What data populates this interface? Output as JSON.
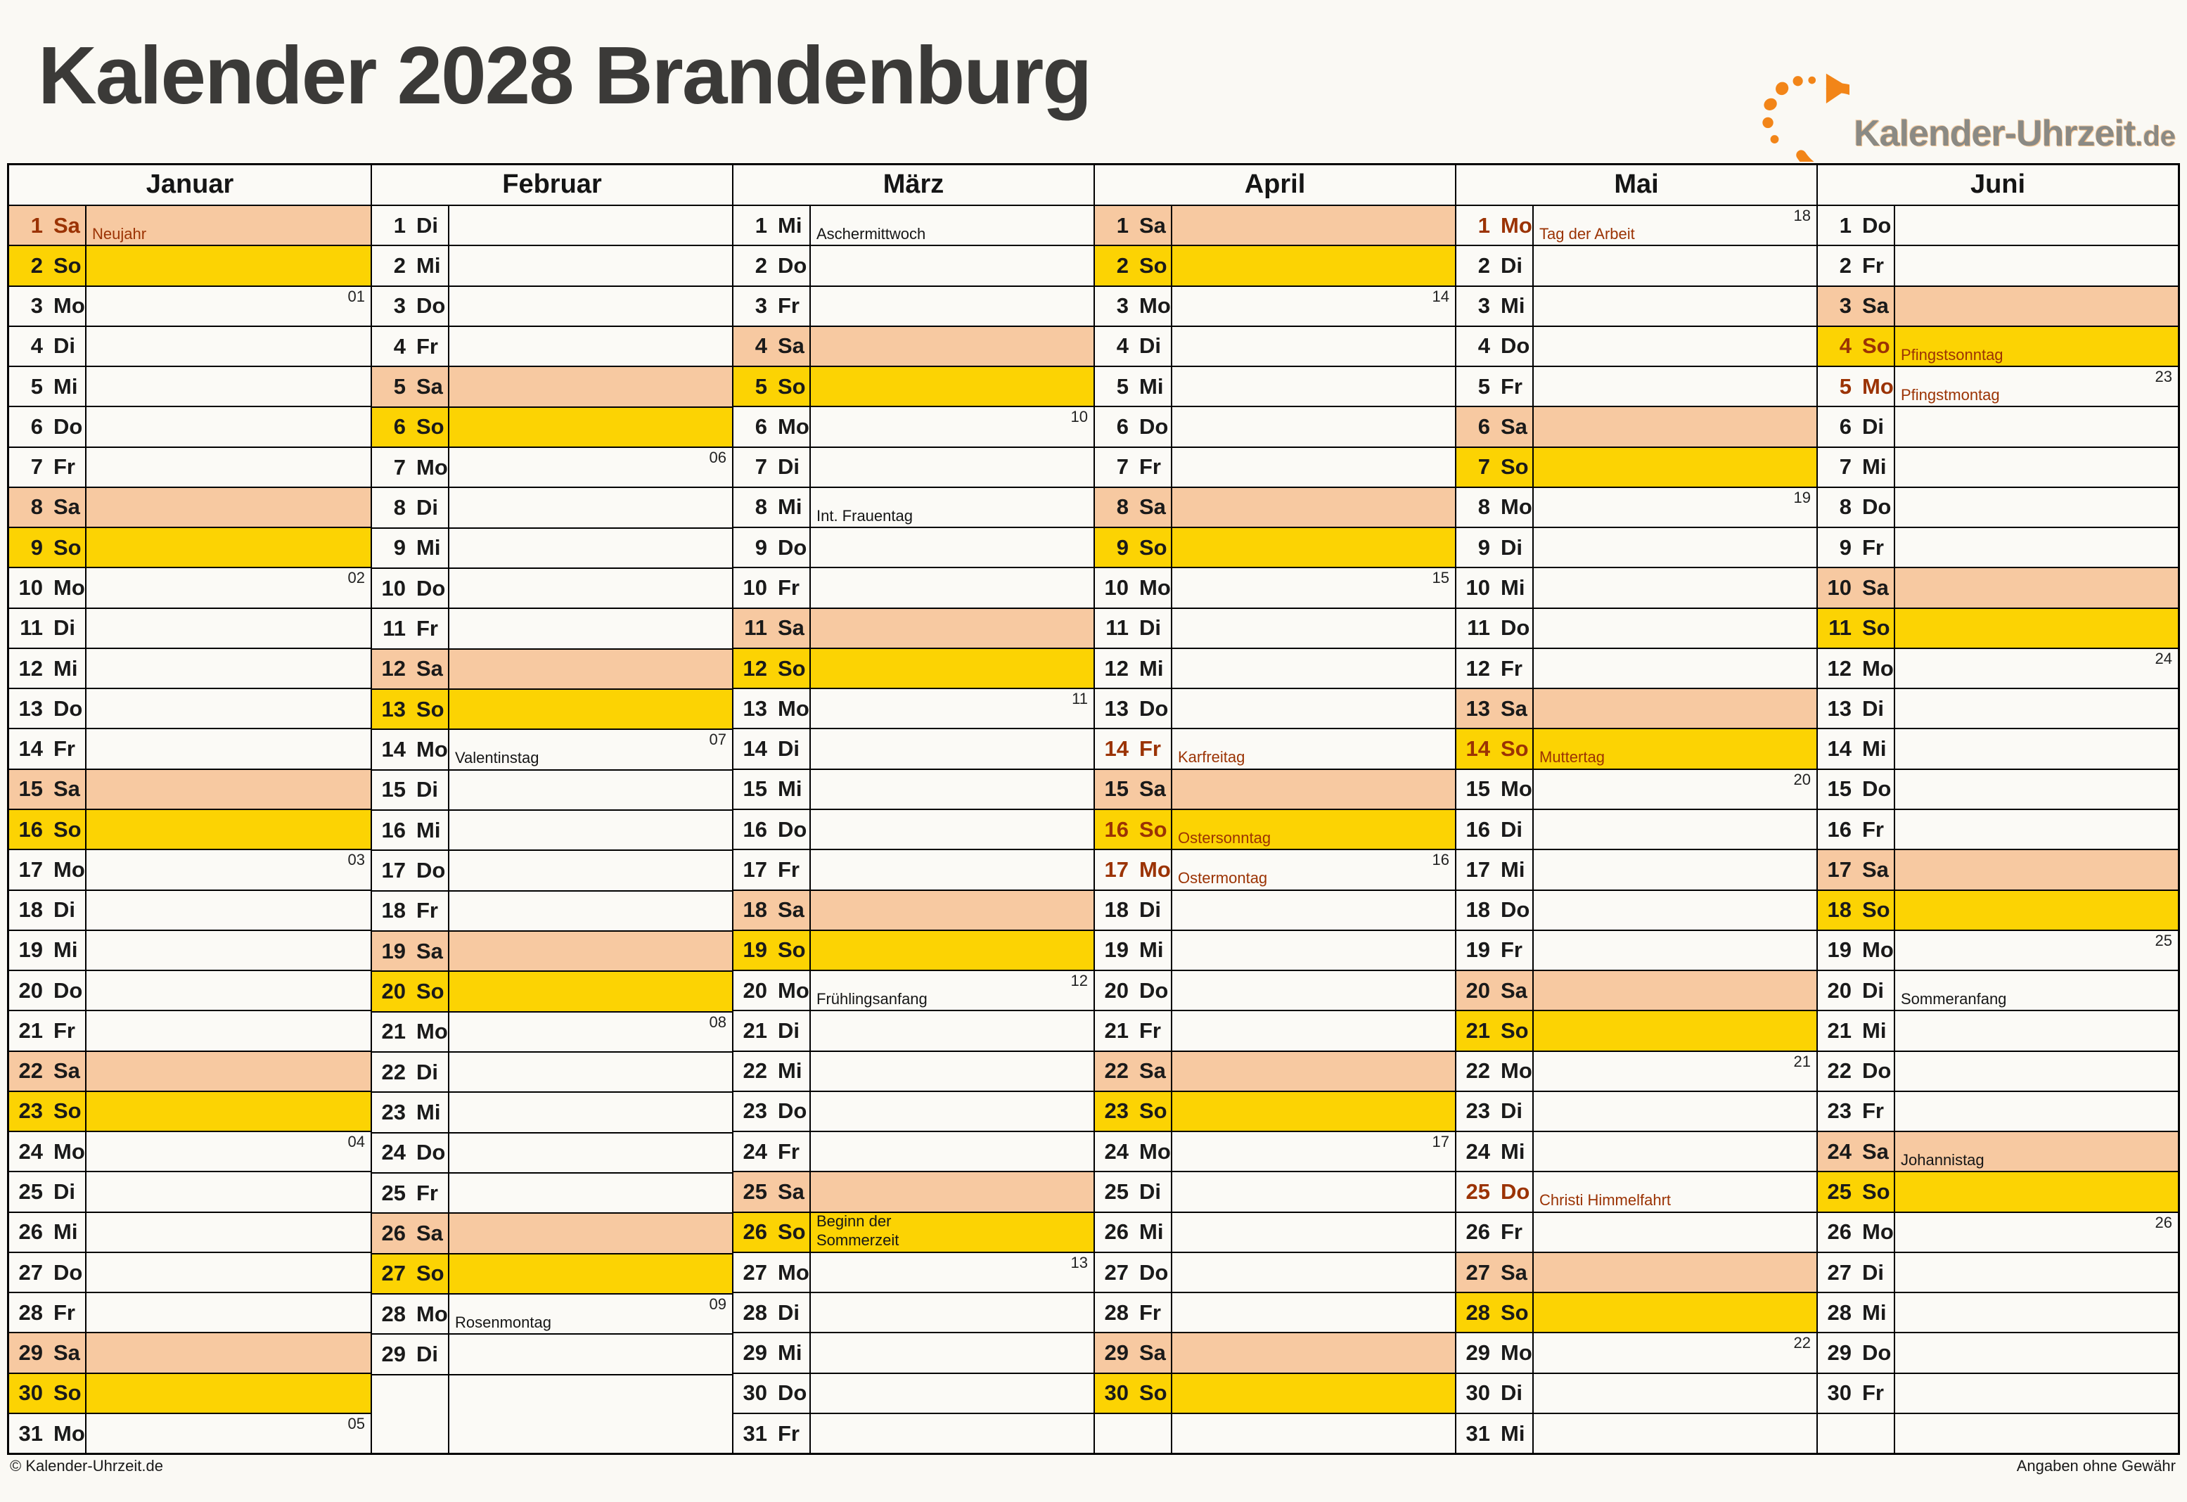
{
  "page": {
    "title": "Kalender 2028 Brandenburg",
    "footer_left": "© Kalender-Uhrzeit.de",
    "footer_right": "Angaben ohne Gewähr"
  },
  "logo": {
    "brand": "Kalender-Uhrzeit",
    "tld": ".de",
    "mark_icon": "clock-arrow-logo"
  },
  "colors": {
    "saturday_bg": "#F7C9A1",
    "sunday_bg": "#FCD303",
    "holiday_text": "#9B3304",
    "brand_orange": "#F28518",
    "brand_gray": "#8A8A85",
    "title_gray": "#3B3A38"
  },
  "calendar": {
    "year": "2028",
    "region": "Brandenburg",
    "rows": 31,
    "months": [
      {
        "name": "Januar",
        "days": [
          {
            "d": 1,
            "w": "Sa",
            "t": "Neujahr",
            "h": true
          },
          {
            "d": 2,
            "w": "So"
          },
          {
            "d": 3,
            "w": "Mo",
            "wk": "01"
          },
          {
            "d": 4,
            "w": "Di"
          },
          {
            "d": 5,
            "w": "Mi"
          },
          {
            "d": 6,
            "w": "Do"
          },
          {
            "d": 7,
            "w": "Fr"
          },
          {
            "d": 8,
            "w": "Sa"
          },
          {
            "d": 9,
            "w": "So"
          },
          {
            "d": 10,
            "w": "Mo",
            "wk": "02"
          },
          {
            "d": 11,
            "w": "Di"
          },
          {
            "d": 12,
            "w": "Mi"
          },
          {
            "d": 13,
            "w": "Do"
          },
          {
            "d": 14,
            "w": "Fr"
          },
          {
            "d": 15,
            "w": "Sa"
          },
          {
            "d": 16,
            "w": "So"
          },
          {
            "d": 17,
            "w": "Mo",
            "wk": "03"
          },
          {
            "d": 18,
            "w": "Di"
          },
          {
            "d": 19,
            "w": "Mi"
          },
          {
            "d": 20,
            "w": "Do"
          },
          {
            "d": 21,
            "w": "Fr"
          },
          {
            "d": 22,
            "w": "Sa"
          },
          {
            "d": 23,
            "w": "So"
          },
          {
            "d": 24,
            "w": "Mo",
            "wk": "04"
          },
          {
            "d": 25,
            "w": "Di"
          },
          {
            "d": 26,
            "w": "Mi"
          },
          {
            "d": 27,
            "w": "Do"
          },
          {
            "d": 28,
            "w": "Fr"
          },
          {
            "d": 29,
            "w": "Sa"
          },
          {
            "d": 30,
            "w": "So"
          },
          {
            "d": 31,
            "w": "Mo",
            "wk": "05"
          }
        ]
      },
      {
        "name": "Februar",
        "days": [
          {
            "d": 1,
            "w": "Di"
          },
          {
            "d": 2,
            "w": "Mi"
          },
          {
            "d": 3,
            "w": "Do"
          },
          {
            "d": 4,
            "w": "Fr"
          },
          {
            "d": 5,
            "w": "Sa"
          },
          {
            "d": 6,
            "w": "So"
          },
          {
            "d": 7,
            "w": "Mo",
            "wk": "06"
          },
          {
            "d": 8,
            "w": "Di"
          },
          {
            "d": 9,
            "w": "Mi"
          },
          {
            "d": 10,
            "w": "Do"
          },
          {
            "d": 11,
            "w": "Fr"
          },
          {
            "d": 12,
            "w": "Sa"
          },
          {
            "d": 13,
            "w": "So"
          },
          {
            "d": 14,
            "w": "Mo",
            "wk": "07",
            "t": "Valentinstag"
          },
          {
            "d": 15,
            "w": "Di"
          },
          {
            "d": 16,
            "w": "Mi"
          },
          {
            "d": 17,
            "w": "Do"
          },
          {
            "d": 18,
            "w": "Fr"
          },
          {
            "d": 19,
            "w": "Sa"
          },
          {
            "d": 20,
            "w": "So"
          },
          {
            "d": 21,
            "w": "Mo",
            "wk": "08"
          },
          {
            "d": 22,
            "w": "Di"
          },
          {
            "d": 23,
            "w": "Mi"
          },
          {
            "d": 24,
            "w": "Do"
          },
          {
            "d": 25,
            "w": "Fr"
          },
          {
            "d": 26,
            "w": "Sa"
          },
          {
            "d": 27,
            "w": "So"
          },
          {
            "d": 28,
            "w": "Mo",
            "wk": "09",
            "t": "Rosenmontag"
          },
          {
            "d": 29,
            "w": "Di"
          }
        ]
      },
      {
        "name": "März",
        "days": [
          {
            "d": 1,
            "w": "Mi",
            "t": "Aschermittwoch"
          },
          {
            "d": 2,
            "w": "Do"
          },
          {
            "d": 3,
            "w": "Fr"
          },
          {
            "d": 4,
            "w": "Sa"
          },
          {
            "d": 5,
            "w": "So"
          },
          {
            "d": 6,
            "w": "Mo",
            "wk": "10"
          },
          {
            "d": 7,
            "w": "Di"
          },
          {
            "d": 8,
            "w": "Mi",
            "t": "Int. Frauentag"
          },
          {
            "d": 9,
            "w": "Do"
          },
          {
            "d": 10,
            "w": "Fr"
          },
          {
            "d": 11,
            "w": "Sa"
          },
          {
            "d": 12,
            "w": "So"
          },
          {
            "d": 13,
            "w": "Mo",
            "wk": "11"
          },
          {
            "d": 14,
            "w": "Di"
          },
          {
            "d": 15,
            "w": "Mi"
          },
          {
            "d": 16,
            "w": "Do"
          },
          {
            "d": 17,
            "w": "Fr"
          },
          {
            "d": 18,
            "w": "Sa"
          },
          {
            "d": 19,
            "w": "So"
          },
          {
            "d": 20,
            "w": "Mo",
            "wk": "12",
            "t": "Frühlingsanfang"
          },
          {
            "d": 21,
            "w": "Di"
          },
          {
            "d": 22,
            "w": "Mi"
          },
          {
            "d": 23,
            "w": "Do"
          },
          {
            "d": 24,
            "w": "Fr"
          },
          {
            "d": 25,
            "w": "Sa"
          },
          {
            "d": 26,
            "w": "So",
            "t": "Beginn der\nSommerzeit"
          },
          {
            "d": 27,
            "w": "Mo",
            "wk": "13"
          },
          {
            "d": 28,
            "w": "Di"
          },
          {
            "d": 29,
            "w": "Mi"
          },
          {
            "d": 30,
            "w": "Do"
          },
          {
            "d": 31,
            "w": "Fr"
          }
        ]
      },
      {
        "name": "April",
        "days": [
          {
            "d": 1,
            "w": "Sa"
          },
          {
            "d": 2,
            "w": "So"
          },
          {
            "d": 3,
            "w": "Mo",
            "wk": "14"
          },
          {
            "d": 4,
            "w": "Di"
          },
          {
            "d": 5,
            "w": "Mi"
          },
          {
            "d": 6,
            "w": "Do"
          },
          {
            "d": 7,
            "w": "Fr"
          },
          {
            "d": 8,
            "w": "Sa"
          },
          {
            "d": 9,
            "w": "So"
          },
          {
            "d": 10,
            "w": "Mo",
            "wk": "15"
          },
          {
            "d": 11,
            "w": "Di"
          },
          {
            "d": 12,
            "w": "Mi"
          },
          {
            "d": 13,
            "w": "Do"
          },
          {
            "d": 14,
            "w": "Fr",
            "t": "Karfreitag",
            "h": true
          },
          {
            "d": 15,
            "w": "Sa"
          },
          {
            "d": 16,
            "w": "So",
            "t": "Ostersonntag",
            "h": true
          },
          {
            "d": 17,
            "w": "Mo",
            "wk": "16",
            "t": "Ostermontag",
            "h": true
          },
          {
            "d": 18,
            "w": "Di"
          },
          {
            "d": 19,
            "w": "Mi"
          },
          {
            "d": 20,
            "w": "Do"
          },
          {
            "d": 21,
            "w": "Fr"
          },
          {
            "d": 22,
            "w": "Sa"
          },
          {
            "d": 23,
            "w": "So"
          },
          {
            "d": 24,
            "w": "Mo",
            "wk": "17"
          },
          {
            "d": 25,
            "w": "Di"
          },
          {
            "d": 26,
            "w": "Mi"
          },
          {
            "d": 27,
            "w": "Do"
          },
          {
            "d": 28,
            "w": "Fr"
          },
          {
            "d": 29,
            "w": "Sa"
          },
          {
            "d": 30,
            "w": "So"
          }
        ]
      },
      {
        "name": "Mai",
        "days": [
          {
            "d": 1,
            "w": "Mo",
            "wk": "18",
            "t": "Tag der Arbeit",
            "h": true
          },
          {
            "d": 2,
            "w": "Di"
          },
          {
            "d": 3,
            "w": "Mi"
          },
          {
            "d": 4,
            "w": "Do"
          },
          {
            "d": 5,
            "w": "Fr"
          },
          {
            "d": 6,
            "w": "Sa"
          },
          {
            "d": 7,
            "w": "So"
          },
          {
            "d": 8,
            "w": "Mo",
            "wk": "19"
          },
          {
            "d": 9,
            "w": "Di"
          },
          {
            "d": 10,
            "w": "Mi"
          },
          {
            "d": 11,
            "w": "Do"
          },
          {
            "d": 12,
            "w": "Fr"
          },
          {
            "d": 13,
            "w": "Sa"
          },
          {
            "d": 14,
            "w": "So",
            "t": "Muttertag",
            "h": true
          },
          {
            "d": 15,
            "w": "Mo",
            "wk": "20"
          },
          {
            "d": 16,
            "w": "Di"
          },
          {
            "d": 17,
            "w": "Mi"
          },
          {
            "d": 18,
            "w": "Do"
          },
          {
            "d": 19,
            "w": "Fr"
          },
          {
            "d": 20,
            "w": "Sa"
          },
          {
            "d": 21,
            "w": "So"
          },
          {
            "d": 22,
            "w": "Mo",
            "wk": "21"
          },
          {
            "d": 23,
            "w": "Di"
          },
          {
            "d": 24,
            "w": "Mi"
          },
          {
            "d": 25,
            "w": "Do",
            "t": "Christi Himmelfahrt",
            "h": true
          },
          {
            "d": 26,
            "w": "Fr"
          },
          {
            "d": 27,
            "w": "Sa"
          },
          {
            "d": 28,
            "w": "So"
          },
          {
            "d": 29,
            "w": "Mo",
            "wk": "22"
          },
          {
            "d": 30,
            "w": "Di"
          },
          {
            "d": 31,
            "w": "Mi"
          }
        ]
      },
      {
        "name": "Juni",
        "days": [
          {
            "d": 1,
            "w": "Do"
          },
          {
            "d": 2,
            "w": "Fr"
          },
          {
            "d": 3,
            "w": "Sa"
          },
          {
            "d": 4,
            "w": "So",
            "t": "Pfingstsonntag",
            "h": true
          },
          {
            "d": 5,
            "w": "Mo",
            "wk": "23",
            "t": "Pfingstmontag",
            "h": true
          },
          {
            "d": 6,
            "w": "Di"
          },
          {
            "d": 7,
            "w": "Mi"
          },
          {
            "d": 8,
            "w": "Do"
          },
          {
            "d": 9,
            "w": "Fr"
          },
          {
            "d": 10,
            "w": "Sa"
          },
          {
            "d": 11,
            "w": "So"
          },
          {
            "d": 12,
            "w": "Mo",
            "wk": "24"
          },
          {
            "d": 13,
            "w": "Di"
          },
          {
            "d": 14,
            "w": "Mi"
          },
          {
            "d": 15,
            "w": "Do"
          },
          {
            "d": 16,
            "w": "Fr"
          },
          {
            "d": 17,
            "w": "Sa"
          },
          {
            "d": 18,
            "w": "So"
          },
          {
            "d": 19,
            "w": "Mo",
            "wk": "25"
          },
          {
            "d": 20,
            "w": "Di",
            "t": "Sommeranfang"
          },
          {
            "d": 21,
            "w": "Mi"
          },
          {
            "d": 22,
            "w": "Do"
          },
          {
            "d": 23,
            "w": "Fr"
          },
          {
            "d": 24,
            "w": "Sa",
            "t": "Johannistag"
          },
          {
            "d": 25,
            "w": "So"
          },
          {
            "d": 26,
            "w": "Mo",
            "wk": "26"
          },
          {
            "d": 27,
            "w": "Di"
          },
          {
            "d": 28,
            "w": "Mi"
          },
          {
            "d": 29,
            "w": "Do"
          },
          {
            "d": 30,
            "w": "Fr"
          }
        ]
      }
    ]
  }
}
